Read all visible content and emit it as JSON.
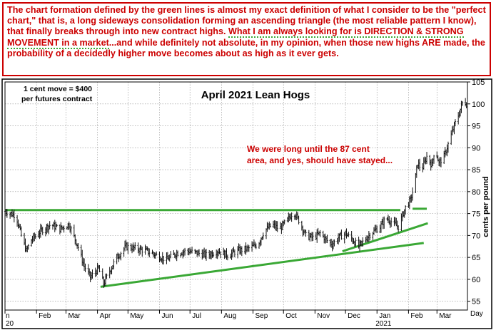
{
  "commentary": {
    "part1": "The chart formation defined by the green lines is almost my exact definition of what I consider to be the \"perfect chart,\" that is, a long sideways consolidation forming an ascending triangle (the most reliable pattern I know), that finally breaks through into new contract highs. ",
    "highlight": "What I am always looking for is DIRECTION & STRONG MOVEMENT in a market",
    "part2": "...and while definitely not absolute, in my opinion, when those new highs ARE made, the probability of a decidedly higher move becomes about as high as it ever gets."
  },
  "chart_data": {
    "type": "ohlc",
    "title": "April 2021 Lean Hogs",
    "ylabel": "cents per pound",
    "xlabel": "Day",
    "ylim": [
      53,
      105
    ],
    "yticks": [
      55,
      60,
      65,
      70,
      75,
      80,
      85,
      90,
      95,
      100,
      105
    ],
    "grid": true,
    "x_range": [
      "2020-01-01",
      "2021-03-31"
    ],
    "months": [
      {
        "label": "n",
        "date": "2020-01-01"
      },
      {
        "label": "Feb",
        "date": "2020-02-01"
      },
      {
        "label": "Mar",
        "date": "2020-03-01"
      },
      {
        "label": "Apr",
        "date": "2020-04-01"
      },
      {
        "label": "May",
        "date": "2020-05-01"
      },
      {
        "label": "Jun",
        "date": "2020-06-01"
      },
      {
        "label": "Jul",
        "date": "2020-07-01"
      },
      {
        "label": "Aug",
        "date": "2020-08-01"
      },
      {
        "label": "Sep",
        "date": "2020-09-01"
      },
      {
        "label": "Oct",
        "date": "2020-10-01"
      },
      {
        "label": "Nov",
        "date": "2020-11-01"
      },
      {
        "label": "Dec",
        "date": "2020-12-01"
      },
      {
        "label": "Jan",
        "date": "2021-01-01"
      },
      {
        "label": "Feb",
        "date": "2021-02-01"
      },
      {
        "label": "Mar",
        "date": "2021-03-01"
      }
    ],
    "years": [
      {
        "label": "20",
        "date": "2020-01-01"
      },
      {
        "label": "2021",
        "date": "2021-01-01"
      }
    ],
    "price_path": [
      [
        "2020-01-01",
        75.5
      ],
      [
        "2020-01-12",
        74.5
      ],
      [
        "2020-01-17",
        70
      ],
      [
        "2020-01-22",
        66.5
      ],
      [
        "2020-01-27",
        69
      ],
      [
        "2020-02-05",
        71
      ],
      [
        "2020-02-15",
        72.5
      ],
      [
        "2020-02-24",
        71.5
      ],
      [
        "2020-03-04",
        72.5
      ],
      [
        "2020-03-12",
        68
      ],
      [
        "2020-03-19",
        63
      ],
      [
        "2020-03-25",
        60.5
      ],
      [
        "2020-04-02",
        62.5
      ],
      [
        "2020-04-07",
        59
      ],
      [
        "2020-04-12",
        61.5
      ],
      [
        "2020-04-20",
        65
      ],
      [
        "2020-04-29",
        67.5
      ],
      [
        "2020-05-09",
        67
      ],
      [
        "2020-05-19",
        66.5
      ],
      [
        "2020-05-29",
        65.5
      ],
      [
        "2020-06-08",
        64.5
      ],
      [
        "2020-06-18",
        66
      ],
      [
        "2020-06-28",
        66.5
      ],
      [
        "2020-07-08",
        66
      ],
      [
        "2020-07-18",
        65.5
      ],
      [
        "2020-07-28",
        66.5
      ],
      [
        "2020-08-07",
        65.5
      ],
      [
        "2020-08-17",
        66.5
      ],
      [
        "2020-08-27",
        67
      ],
      [
        "2020-09-06",
        68
      ],
      [
        "2020-09-12",
        71
      ],
      [
        "2020-09-20",
        72.5
      ],
      [
        "2020-09-27",
        71.5
      ],
      [
        "2020-10-05",
        73.5
      ],
      [
        "2020-10-11",
        75.5
      ],
      [
        "2020-10-17",
        73
      ],
      [
        "2020-10-23",
        70
      ],
      [
        "2020-10-30",
        69.5
      ],
      [
        "2020-11-06",
        70.5
      ],
      [
        "2020-11-12",
        69
      ],
      [
        "2020-11-18",
        68
      ],
      [
        "2020-11-24",
        69.5
      ],
      [
        "2020-12-01",
        70.5
      ],
      [
        "2020-12-08",
        69
      ],
      [
        "2020-12-14",
        67.5
      ],
      [
        "2020-12-20",
        69
      ],
      [
        "2020-12-26",
        70.5
      ],
      [
        "2021-01-04",
        72
      ],
      [
        "2021-01-10",
        74
      ],
      [
        "2021-01-16",
        73
      ],
      [
        "2021-01-22",
        72
      ],
      [
        "2021-01-26",
        74.5
      ],
      [
        "2021-01-30",
        77
      ],
      [
        "2021-02-03",
        78
      ],
      [
        "2021-02-07",
        82
      ],
      [
        "2021-02-10",
        86.5
      ],
      [
        "2021-02-14",
        85
      ],
      [
        "2021-02-19",
        88
      ],
      [
        "2021-02-24",
        86
      ],
      [
        "2021-02-27",
        90
      ],
      [
        "2021-03-03",
        86.5
      ],
      [
        "2021-03-08",
        88
      ],
      [
        "2021-03-13",
        91.5
      ],
      [
        "2021-03-18",
        95
      ],
      [
        "2021-03-23",
        98
      ],
      [
        "2021-03-27",
        101
      ],
      [
        "2021-03-30",
        100
      ]
    ],
    "trendlines": [
      {
        "name": "resistance",
        "from": [
          "2020-01-01",
          75.8
        ],
        "to": [
          "2021-01-24",
          75.8
        ]
      },
      {
        "name": "resistance-extension",
        "from": [
          "2021-02-05",
          76.1
        ],
        "to": [
          "2021-02-19",
          76.1
        ]
      },
      {
        "name": "support",
        "from": [
          "2020-04-04",
          58.3
        ],
        "to": [
          "2021-02-16",
          68.3
        ]
      },
      {
        "name": "support-steep",
        "from": [
          "2020-11-28",
          66.4
        ],
        "to": [
          "2021-02-20",
          72.8
        ]
      }
    ],
    "annotations": [
      {
        "text": "1 cent move = $400"
      },
      {
        "text": "per futures contract"
      },
      {
        "text": "We were long until the 87 cent"
      },
      {
        "text": "area, and yes, should have stayed..."
      }
    ]
  },
  "colors": {
    "commentary_text": "#cc0000",
    "border": "#cc0000",
    "trendline": "#3aa835",
    "bars": "#111111",
    "grid": "#8c8c8c",
    "annotation": "#cc0000"
  }
}
